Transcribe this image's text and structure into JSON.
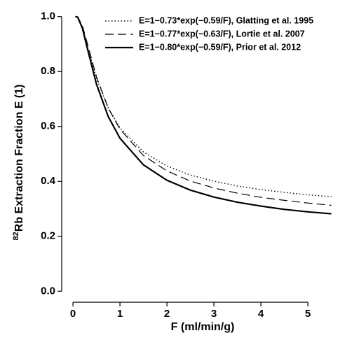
{
  "chart_data": {
    "type": "line",
    "x_label": "F (ml/min/g)",
    "y_label_superscript": "82",
    "y_label": "Rb Extraction Fraction E (1)",
    "x": [
      0.05,
      0.1,
      0.2,
      0.3,
      0.5,
      0.75,
      1,
      1.5,
      2,
      2.5,
      3,
      3.5,
      4,
      4.5,
      5,
      5.5
    ],
    "series": [
      {
        "name": "E=1−0.73*exp(−0.59/F), Glatting et al. 1995",
        "color": "#000000",
        "dash": "dotted",
        "values": [
          1.0,
          0.998,
          0.962,
          0.898,
          0.776,
          0.668,
          0.595,
          0.507,
          0.456,
          0.423,
          0.401,
          0.383,
          0.37,
          0.36,
          0.351,
          0.344
        ]
      },
      {
        "name": "E=1−0.77*exp(−0.63/F), Lortie et al. 2007",
        "color": "#000000",
        "dash": "dashed",
        "values": [
          1.0,
          0.999,
          0.967,
          0.906,
          0.781,
          0.667,
          0.59,
          0.494,
          0.438,
          0.401,
          0.376,
          0.357,
          0.342,
          0.331,
          0.321,
          0.313
        ]
      },
      {
        "name": "E=1−0.80*exp(−0.59/F), Prior et al. 2012",
        "color": "#000000",
        "dash": "solid",
        "values": [
          1.0,
          0.998,
          0.958,
          0.888,
          0.754,
          0.636,
          0.557,
          0.46,
          0.404,
          0.368,
          0.343,
          0.324,
          0.31,
          0.298,
          0.289,
          0.282
        ]
      }
    ],
    "xlim": [
      -0.24,
      5.76
    ],
    "ylim": [
      -0.04,
      1.04
    ],
    "xticks": [
      0,
      1,
      2,
      3,
      4,
      5
    ],
    "yticks": [
      {
        "value": 0,
        "label": "0.0"
      },
      {
        "value": 0.2,
        "label": "0.2"
      },
      {
        "value": 0.4,
        "label": "0.4"
      },
      {
        "value": 0.6,
        "label": "0.6"
      },
      {
        "value": 0.8,
        "label": "0.8"
      },
      {
        "value": 1,
        "label": "1.0"
      }
    ],
    "legend": "top-right"
  }
}
